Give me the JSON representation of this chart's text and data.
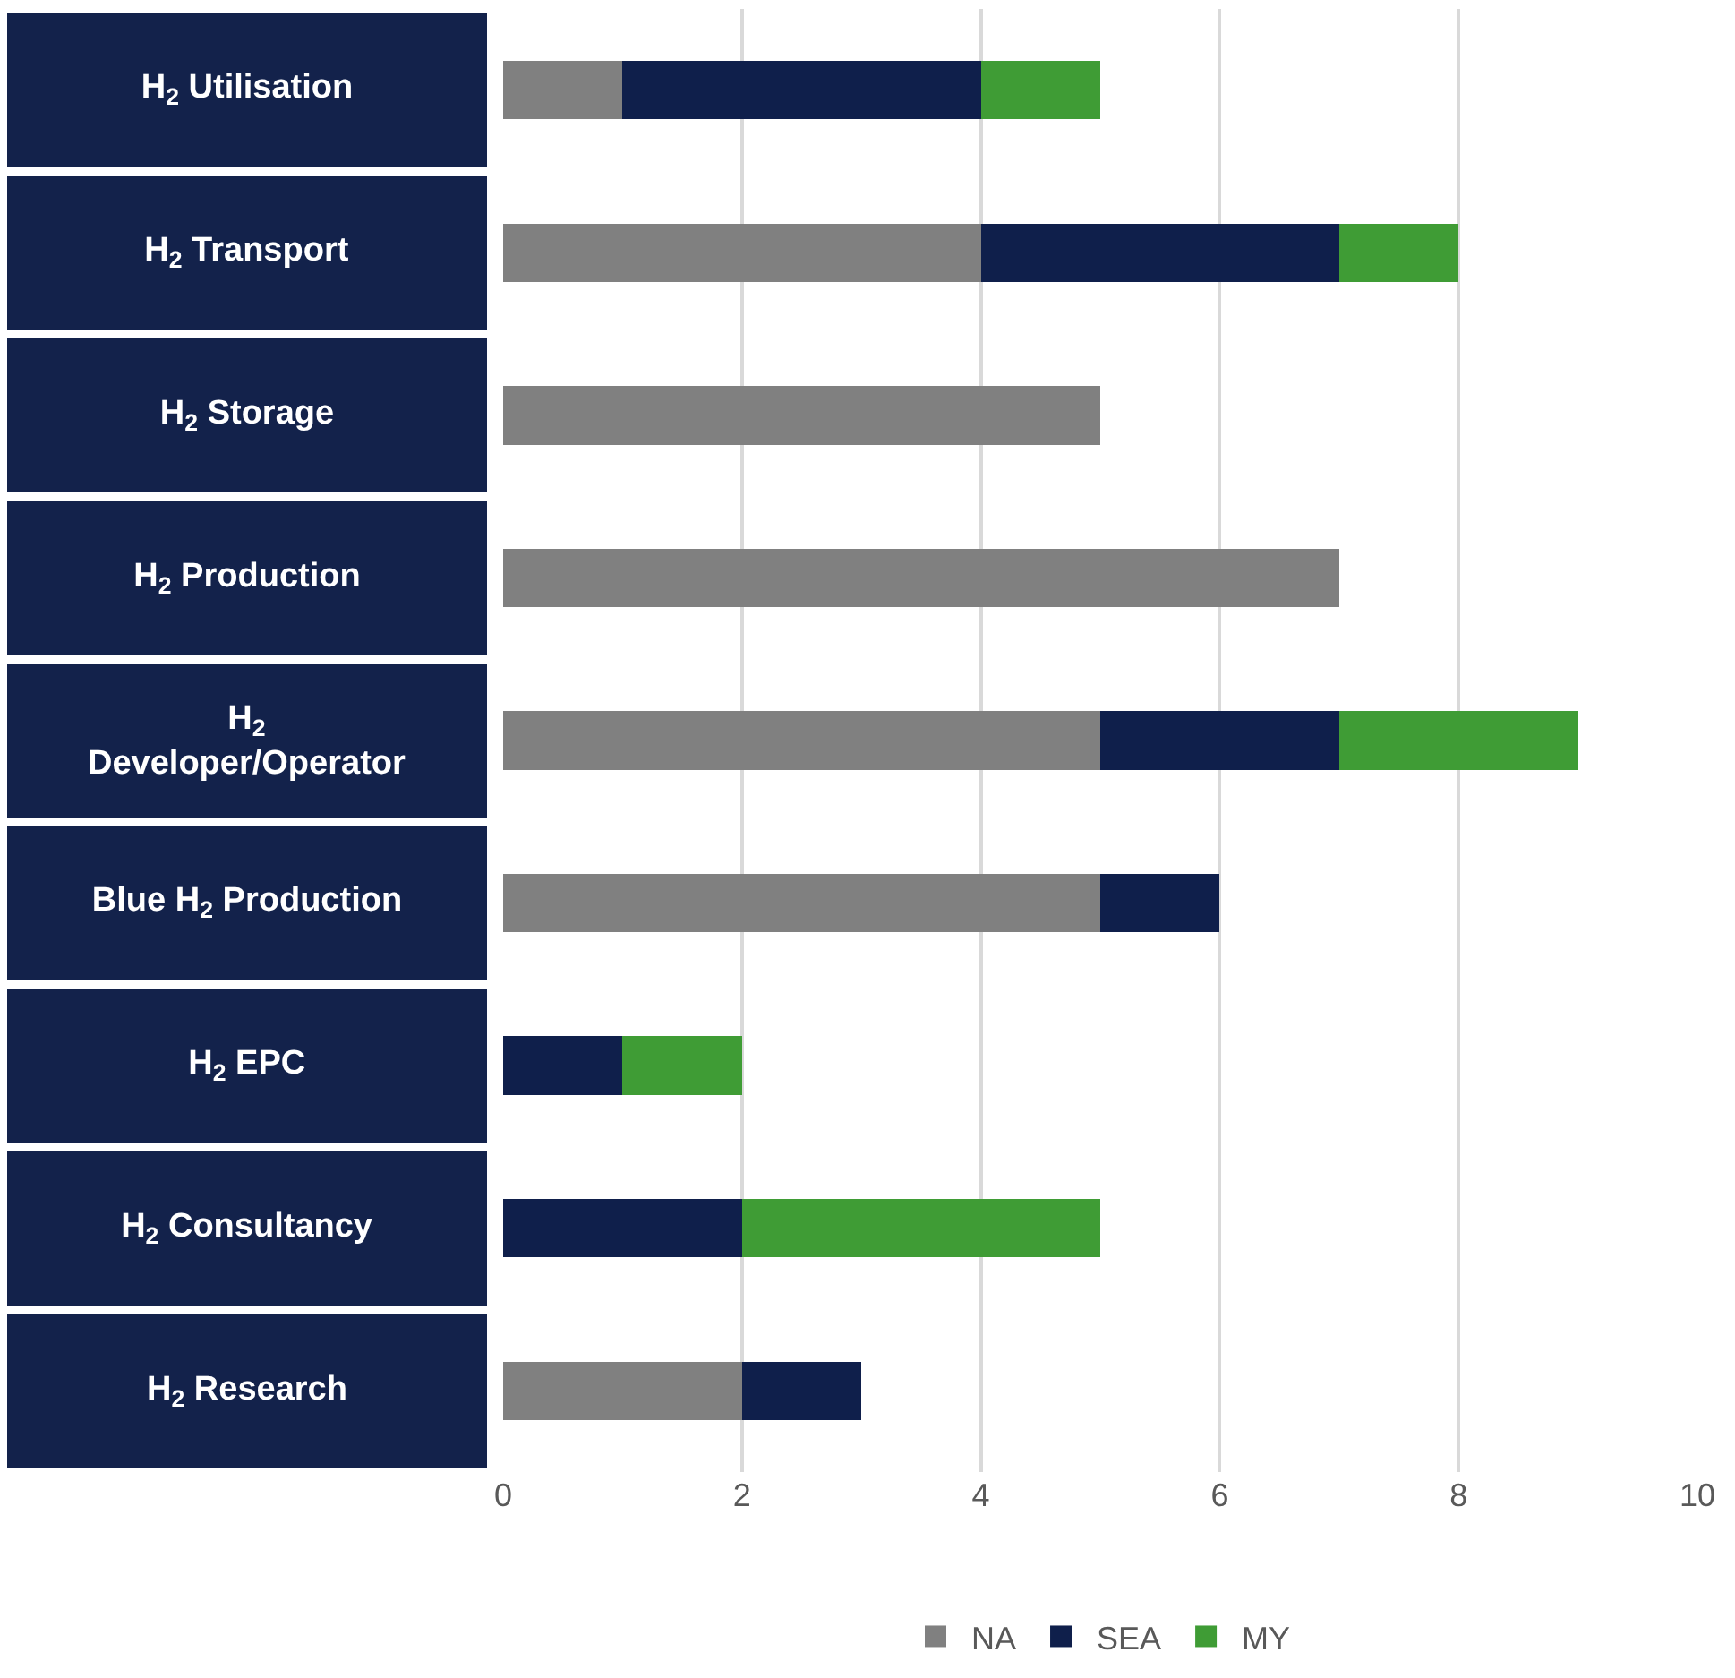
{
  "chart_data": {
    "type": "bar",
    "orientation": "horizontal",
    "stacked": true,
    "categories": [
      "H$_{2}$ Utilisation",
      "H$_{2}$ Transport",
      "H$_{2}$ Storage",
      "H$_{2}$ Production",
      "H$_{2}$\nDeveloper/Operator",
      "Blue H$_{2}$ Production",
      "H$_{2}$ EPC",
      "H$_{2}$ Consultancy",
      "H$_{2}$ Research"
    ],
    "series": [
      {
        "name": "NA",
        "color": "#808080",
        "values": [
          1,
          4,
          5,
          7,
          5,
          5,
          null,
          null,
          2
        ]
      },
      {
        "name": "SEA",
        "color": "#0f1f4b",
        "values": [
          3,
          3,
          null,
          null,
          2,
          1,
          1,
          2,
          1
        ]
      },
      {
        "name": "MY",
        "color": "#3f9c35",
        "values": [
          1,
          1,
          null,
          null,
          2,
          null,
          1,
          3,
          null
        ]
      }
    ],
    "xlim": [
      0,
      10
    ],
    "xticks": [
      0,
      2,
      4,
      6,
      8,
      10
    ],
    "grid": "x",
    "legend": "bottom"
  }
}
